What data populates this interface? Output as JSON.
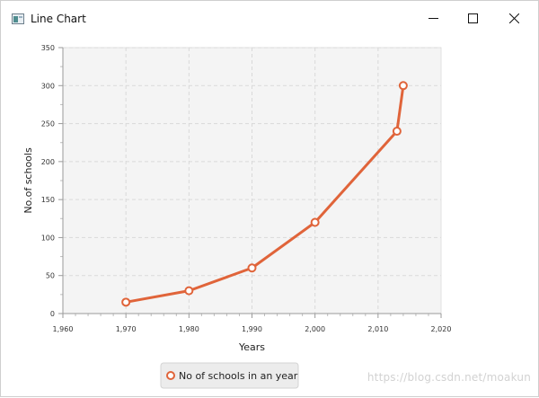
{
  "window": {
    "title": "Line Chart",
    "icon": "java-app-icon",
    "controls": [
      "minimize-icon",
      "maximize-icon",
      "close-icon"
    ]
  },
  "chart_data": {
    "type": "line",
    "title": "",
    "xlabel": "Years",
    "ylabel": "No.of schools",
    "xlim": [
      1960,
      2020
    ],
    "ylim": [
      0,
      350
    ],
    "x_ticks": [
      "1,960",
      "1,970",
      "1,980",
      "1,990",
      "2,000",
      "2,010",
      "2,020"
    ],
    "y_ticks": [
      "0",
      "50",
      "100",
      "150",
      "200",
      "250",
      "300",
      "350"
    ],
    "grid": true,
    "legend": "bottom-center",
    "series": [
      {
        "name": "No of schools in an year",
        "color": "#e0643a",
        "x": [
          1970,
          1980,
          1990,
          2000,
          2013,
          2014
        ],
        "y": [
          15,
          30,
          60,
          120,
          240,
          300
        ]
      }
    ]
  },
  "watermark": "https://blog.csdn.net/moakun"
}
